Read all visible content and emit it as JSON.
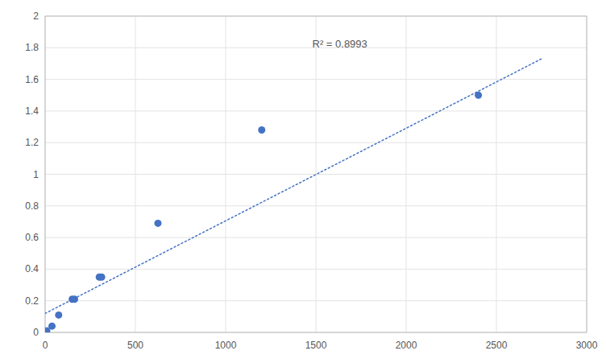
{
  "chart_data": {
    "type": "scatter",
    "series": [
      {
        "type": "scatter",
        "marker": "circle",
        "color": "#4472c4",
        "x": [
          9,
          38,
          75,
          150,
          163,
          300,
          313,
          625,
          1200,
          2400
        ],
        "values": [
          0.01,
          0.04,
          0.11,
          0.21,
          0.21,
          0.35,
          0.35,
          0.69,
          1.28,
          1.5
        ]
      },
      {
        "type": "line",
        "line_style": "dotted",
        "color": "#4472c4",
        "x": [
          0,
          2750
        ],
        "values": [
          0.12,
          1.73
        ]
      }
    ],
    "annotations": [
      {
        "text": "R² = 0.8993",
        "x": 1480,
        "y": 1.85
      }
    ],
    "xlim": [
      0,
      3000
    ],
    "ylim": [
      0,
      2.0
    ],
    "xticks": [
      0,
      500,
      1000,
      1500,
      2000,
      2500,
      3000
    ],
    "yticks": [
      0,
      0.2,
      0.4,
      0.6,
      0.8,
      1,
      1.2,
      1.4,
      1.6,
      1.8,
      2
    ],
    "grid": true
  }
}
